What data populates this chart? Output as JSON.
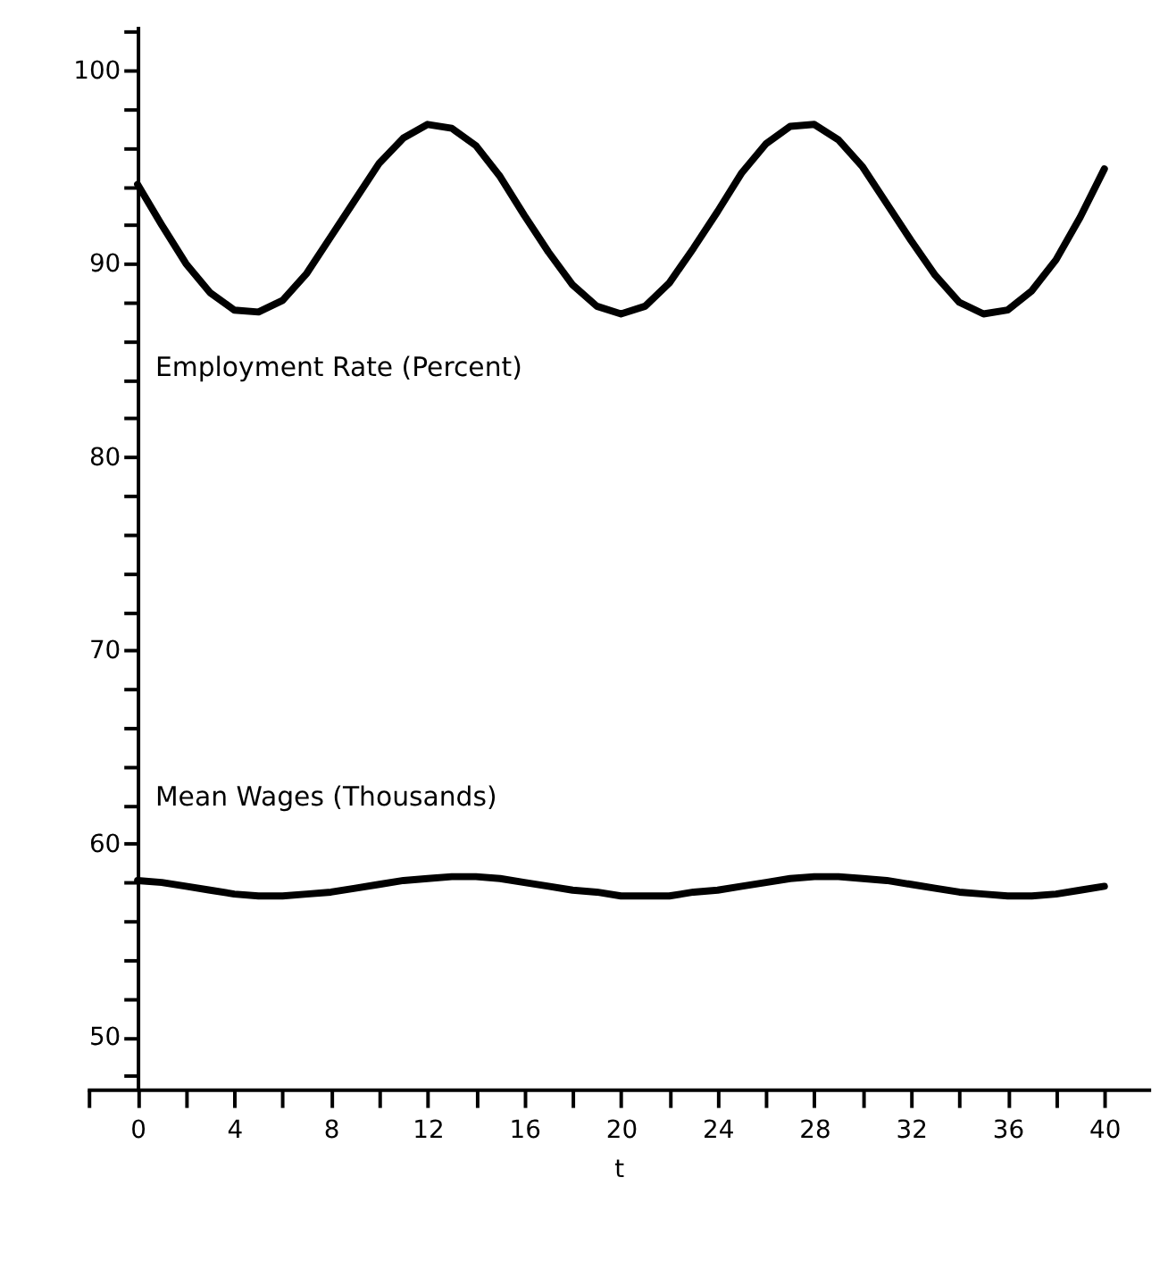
{
  "chart_data": {
    "type": "line",
    "xlabel": "t",
    "x": [
      0,
      1,
      2,
      3,
      4,
      5,
      6,
      7,
      8,
      9,
      10,
      11,
      12,
      13,
      14,
      15,
      16,
      17,
      18,
      19,
      20,
      21,
      22,
      23,
      24,
      25,
      26,
      27,
      28,
      29,
      30,
      31,
      32,
      33,
      34,
      35,
      36,
      37,
      38,
      39,
      40
    ],
    "series": [
      {
        "name": "Employment Rate (Percent)",
        "color": "#000000",
        "values": [
          94.1,
          92.0,
          90.0,
          88.5,
          87.6,
          87.5,
          88.1,
          89.5,
          91.4,
          93.3,
          95.2,
          96.5,
          97.2,
          97.0,
          96.1,
          94.5,
          92.5,
          90.6,
          88.9,
          87.8,
          87.4,
          87.8,
          89.0,
          90.8,
          92.7,
          94.7,
          96.2,
          97.1,
          97.2,
          96.4,
          95.0,
          93.1,
          91.2,
          89.4,
          88.0,
          87.4,
          87.6,
          88.6,
          90.2,
          92.4,
          94.9
        ]
      },
      {
        "name": "Mean Wages (Thousands)",
        "color": "#000000",
        "values": [
          58.1,
          58.0,
          57.8,
          57.6,
          57.4,
          57.3,
          57.3,
          57.4,
          57.5,
          57.7,
          57.9,
          58.1,
          58.2,
          58.3,
          58.3,
          58.2,
          58.0,
          57.8,
          57.6,
          57.5,
          57.3,
          57.3,
          57.3,
          57.5,
          57.6,
          57.8,
          58.0,
          58.2,
          58.3,
          58.3,
          58.2,
          58.1,
          57.9,
          57.7,
          57.5,
          57.4,
          57.3,
          57.3,
          57.4,
          57.6,
          57.8
        ]
      }
    ],
    "xlim": [
      -2.1,
      41.9
    ],
    "ylim": [
      47.3,
      102.3
    ],
    "xticks": [
      {
        "value": -2,
        "label": null
      },
      0,
      {
        "value": 2,
        "label": null
      },
      4,
      {
        "value": 6,
        "label": null
      },
      8,
      {
        "value": 10,
        "label": null
      },
      12,
      {
        "value": 14,
        "label": null
      },
      16,
      {
        "value": 18,
        "label": null
      },
      20,
      {
        "value": 22,
        "label": null
      },
      24,
      {
        "value": 26,
        "label": null
      },
      28,
      {
        "value": 30,
        "label": null
      },
      32,
      {
        "value": 34,
        "label": null
      },
      36,
      {
        "value": 38,
        "label": null
      },
      40
    ],
    "yticks": [
      {
        "value": 48,
        "label": null
      },
      50,
      {
        "value": 52,
        "label": null
      },
      {
        "value": 54,
        "label": null
      },
      {
        "value": 56,
        "label": null
      },
      {
        "value": 58,
        "label": null
      },
      60,
      {
        "value": 62,
        "label": null
      },
      {
        "value": 64,
        "label": null
      },
      {
        "value": 66,
        "label": null
      },
      {
        "value": 68,
        "label": null
      },
      70,
      {
        "value": 72,
        "label": null
      },
      {
        "value": 74,
        "label": null
      },
      {
        "value": 76,
        "label": null
      },
      {
        "value": 78,
        "label": null
      },
      80,
      {
        "value": 82,
        "label": null
      },
      {
        "value": 84,
        "label": null
      },
      {
        "value": 86,
        "label": null
      },
      {
        "value": 88,
        "label": null
      },
      90,
      {
        "value": 92,
        "label": null
      },
      {
        "value": 94,
        "label": null
      },
      {
        "value": 96,
        "label": null
      },
      {
        "value": 98,
        "label": null
      },
      100,
      {
        "value": 102,
        "label": null
      }
    ],
    "grid": false,
    "legend": false,
    "marker": "none",
    "line_style": "solid"
  }
}
